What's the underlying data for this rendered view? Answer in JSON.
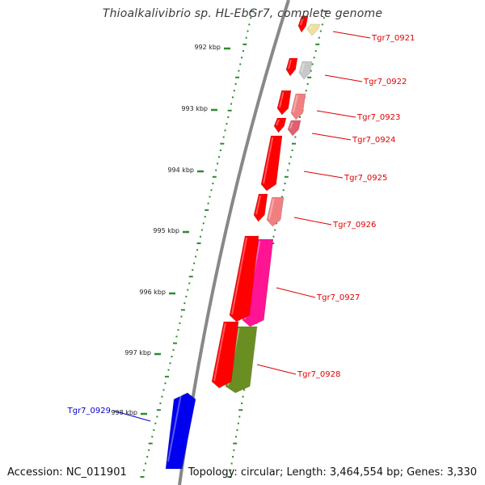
{
  "title": "Thioalkalivibrio sp. HL-EbGr7, complete genome",
  "footer": {
    "accession": "Accession: NC_011901",
    "topology": "Topology: circular; Length: 3,464,554 bp; Genes: 3,330"
  },
  "colors": {
    "background": "#ffffff",
    "backbone": "#888888",
    "tick": "#2e8b2e",
    "forward_gene": "#ff0000",
    "label_forward": "#dd0000",
    "label_reverse": "#0000cc",
    "reverse_gene": "#0000ee"
  },
  "scale": {
    "unit": "kbp",
    "ticks": [
      992,
      993,
      994,
      995,
      996,
      997,
      998
    ]
  },
  "genes": [
    {
      "label": "Tgr7_0921",
      "strand": "forward",
      "color": "#ff0000",
      "partner_color": "#f0e0a0"
    },
    {
      "label": "Tgr7_0922",
      "strand": "forward",
      "color": "#ff0000",
      "partner_color": "#c8c8c8"
    },
    {
      "label": "Tgr7_0923",
      "strand": "forward",
      "color": "#ff0000",
      "partner_color": "#f08080"
    },
    {
      "label": "Tgr7_0924",
      "strand": "forward",
      "color": "#ff0000",
      "partner_color": "#e06070"
    },
    {
      "label": "Tgr7_0925",
      "strand": "forward",
      "color": "#ff0000",
      "partner_color": ""
    },
    {
      "label": "Tgr7_0926",
      "strand": "forward",
      "color": "#ff0000",
      "partner_color": "#f08080"
    },
    {
      "label": "Tgr7_0927",
      "strand": "forward",
      "color": "#ff0000",
      "partner_color": "#ff1493"
    },
    {
      "label": "Tgr7_0928",
      "strand": "forward",
      "color": "#ff0000",
      "partner_color": "#6b8e23"
    },
    {
      "label": "Tgr7_0929",
      "strand": "reverse",
      "color": "#0000ee",
      "partner_color": ""
    }
  ]
}
